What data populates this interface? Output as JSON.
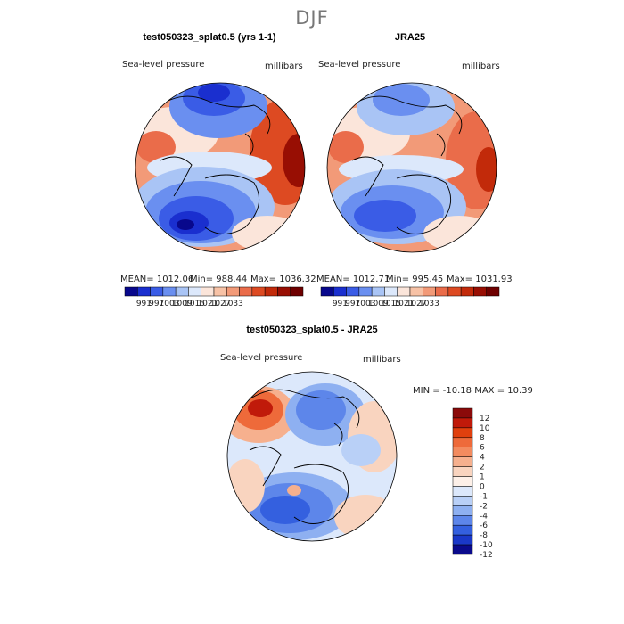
{
  "season": "DJF",
  "panels": [
    {
      "title": "test050323_splat0.5 (yrs 1-1)",
      "field": "Sea-level pressure",
      "units": "millibars",
      "stats": {
        "mean": "MEAN= 1012.06",
        "min": "Min= 988.44",
        "max": "Max= 1036.32"
      }
    },
    {
      "title": "JRA25",
      "field": "Sea-level pressure",
      "units": "millibars",
      "stats": {
        "mean": "MEAN= 1012.71",
        "min": "Min= 995.45",
        "max": "Max= 1031.93"
      }
    },
    {
      "title": "test050323_splat0.5 - JRA25",
      "field": "Sea-level pressure",
      "units": "millibars",
      "stats": {
        "range": "MIN = -10.18  MAX =  10.39"
      }
    }
  ],
  "chart_data": [
    {
      "type": "heatmap",
      "title": "test050323_splat0.5 (yrs 1-1)",
      "projection": "north polar stereographic",
      "legend_labels": [
        "991",
        "997",
        "1003",
        "1009",
        "1015",
        "1021",
        "1027",
        "1033"
      ],
      "legend_colors": [
        "#08088c",
        "#1a2fcf",
        "#3a5ce6",
        "#6a8ff0",
        "#a9c4f5",
        "#dce8fb",
        "#fbe5da",
        "#f7c2a6",
        "#f29a78",
        "#ea6c4a",
        "#dd4a22",
        "#c22a0a",
        "#980e03",
        "#6e0000"
      ]
    },
    {
      "type": "heatmap",
      "title": "JRA25",
      "projection": "north polar stereographic",
      "legend_labels": [
        "991",
        "997",
        "1003",
        "1009",
        "1015",
        "1021",
        "1027",
        "1033"
      ],
      "legend_colors": [
        "#08088c",
        "#1a2fcf",
        "#3a5ce6",
        "#6a8ff0",
        "#a9c4f5",
        "#dce8fb",
        "#fbe5da",
        "#f7c2a6",
        "#f29a78",
        "#ea6c4a",
        "#dd4a22",
        "#c22a0a",
        "#980e03",
        "#6e0000"
      ]
    },
    {
      "type": "heatmap",
      "title": "test050323_splat0.5 - JRA25",
      "projection": "north polar stereographic",
      "legend_labels": [
        "12",
        "10",
        "8",
        "6",
        "4",
        "2",
        "1",
        "0",
        "-1",
        "-2",
        "-4",
        "-6",
        "-8",
        "-10",
        "-12"
      ],
      "legend_colors": [
        "#8b0a0a",
        "#c01a0a",
        "#e0400e",
        "#ee6a3a",
        "#f38b5f",
        "#f6b08e",
        "#f9d4bf",
        "#fdf0e8",
        "#dce8fb",
        "#b9d0f7",
        "#8eb0f1",
        "#5d86ea",
        "#3460df",
        "#1a38c8",
        "#0a0a8c"
      ]
    }
  ]
}
